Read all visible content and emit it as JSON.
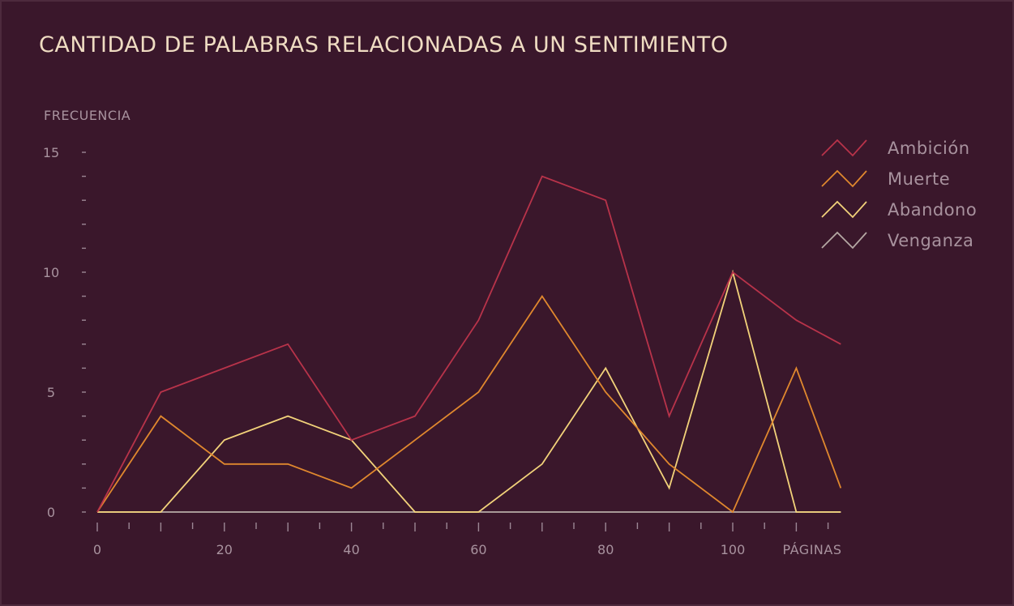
{
  "title": "CANTIDAD DE PALABRAS RELACIONADAS A UN SENTIMIENTO",
  "chart_data": {
    "type": "line",
    "title": "CANTIDAD DE PALABRAS RELACIONADAS A UN SENTIMIENTO",
    "xlabel": "PÁGINAS",
    "ylabel": "FRECUENCIA",
    "x": [
      0,
      10,
      20,
      30,
      40,
      50,
      60,
      70,
      80,
      90,
      100,
      110,
      117
    ],
    "xlim": [
      0,
      117
    ],
    "ylim": [
      0,
      15
    ],
    "x_ticks": [
      0,
      20,
      40,
      60,
      80,
      100
    ],
    "y_ticks": [
      0,
      5,
      10,
      15
    ],
    "grid": false,
    "legend_position": "top-right",
    "series": [
      {
        "name": "Ambición",
        "color": "#b8334a",
        "values": [
          0,
          5,
          6,
          7,
          3,
          4,
          8,
          14,
          13,
          4,
          10,
          8,
          7
        ]
      },
      {
        "name": "Muerte",
        "color": "#e0882e",
        "values": [
          0,
          4,
          2,
          2,
          1,
          3,
          5,
          9,
          5,
          2,
          0,
          6,
          1
        ]
      },
      {
        "name": "Abandono",
        "color": "#f2d27a",
        "values": [
          0,
          0,
          3,
          4,
          3,
          0,
          0,
          2,
          6,
          1,
          10,
          0,
          0
        ]
      },
      {
        "name": "Venganza",
        "color": "#b5a8a4",
        "values": [
          0,
          0,
          0,
          0,
          0,
          0,
          0,
          0,
          0,
          0,
          0,
          0,
          0
        ]
      }
    ]
  }
}
